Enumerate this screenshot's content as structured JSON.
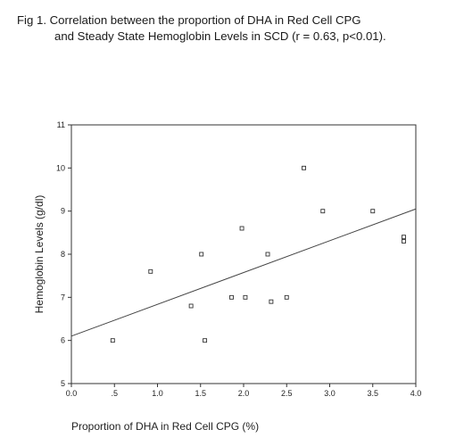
{
  "caption": {
    "line1": "Fig 1.  Correlation between the proportion of DHA in Red Cell CPG",
    "line2": "and Steady State Hemoglobin Levels in SCD (r = 0.63, p<0.01)."
  },
  "chart_data": {
    "type": "scatter",
    "title": "Fig 1.  Correlation between the proportion of DHA in Red Cell CPG and Steady State Hemoglobin Levels in SCD (r = 0.63, p<0.01).",
    "xlabel": "Proportion of DHA in Red Cell CPG (%)",
    "ylabel": "Hemoglobin Levels (g/dl)",
    "xlim": [
      0.0,
      4.0
    ],
    "ylim": [
      5,
      11
    ],
    "xticks": [
      "0.0",
      ".5",
      "1.0",
      "1.5",
      "2.0",
      "2.5",
      "3.0",
      "3.5",
      "4.0"
    ],
    "yticks": [
      "5",
      "6",
      "7",
      "8",
      "9",
      "10",
      "11"
    ],
    "grid": false,
    "series": [
      {
        "points": [
          {
            "x": 0.48,
            "y": 6.0
          },
          {
            "x": 0.92,
            "y": 7.6
          },
          {
            "x": 1.39,
            "y": 6.8
          },
          {
            "x": 1.51,
            "y": 8.0
          },
          {
            "x": 1.55,
            "y": 6.0
          },
          {
            "x": 1.86,
            "y": 7.0
          },
          {
            "x": 1.98,
            "y": 8.6
          },
          {
            "x": 2.02,
            "y": 7.0
          },
          {
            "x": 2.28,
            "y": 8.0
          },
          {
            "x": 2.32,
            "y": 6.9
          },
          {
            "x": 2.5,
            "y": 7.0
          },
          {
            "x": 2.7,
            "y": 10.0
          },
          {
            "x": 2.92,
            "y": 9.0
          },
          {
            "x": 3.5,
            "y": 9.0
          },
          {
            "x": 3.86,
            "y": 8.4
          },
          {
            "x": 3.86,
            "y": 8.3
          }
        ]
      }
    ],
    "fit_line": {
      "x": [
        0.0,
        4.0
      ],
      "y": [
        6.1,
        9.05
      ]
    }
  }
}
